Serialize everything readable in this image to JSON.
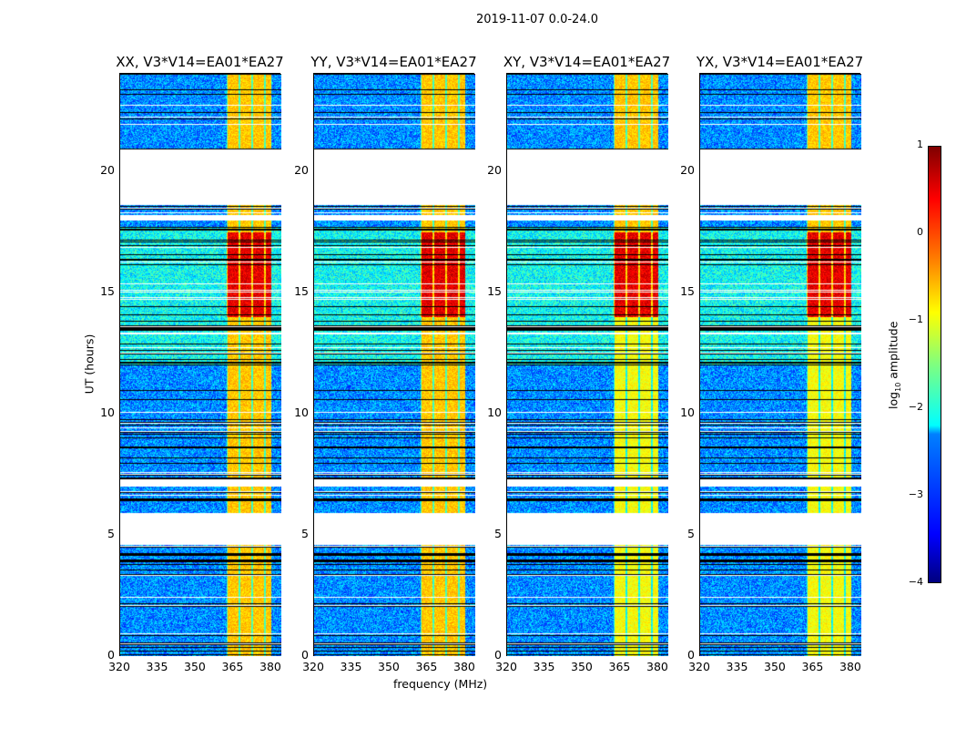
{
  "suptitle": "2019-11-07 0.0-24.0",
  "xlabel": "frequency (MHz)",
  "ylabel": "UT (hours)",
  "colorbar": {
    "label": "log10 amplitude",
    "label_base": "log",
    "label_sub": "10",
    "label_rest": " amplitude",
    "ticks": [
      "1",
      "0",
      "−1",
      "−2",
      "−3",
      "−4"
    ],
    "range": [
      -4,
      1
    ],
    "colormap": "jet"
  },
  "chart_data": {
    "type": "heatmap",
    "title": "2019-11-07 0.0-24.0",
    "xlabel": "frequency (MHz)",
    "ylabel": "UT (hours)",
    "xlim": [
      320,
      384
    ],
    "ylim": [
      0,
      24
    ],
    "xticks": [
      "320",
      "335",
      "350",
      "365",
      "380"
    ],
    "yticks": [
      "0",
      "5",
      "10",
      "15",
      "20"
    ],
    "panels": [
      {
        "title": "XX, V3*V14=EA01*EA27"
      },
      {
        "title": "YY, V3*V14=EA01*EA27"
      },
      {
        "title": "XY, V3*V14=EA01*EA27"
      },
      {
        "title": "YX, V3*V14=EA01*EA27"
      }
    ],
    "features": {
      "rfi_band_mhz": [
        362,
        380
      ],
      "background_log_amp": -2.8,
      "rfi_log_amp": -0.6,
      "strong_rfi_hours": [
        14,
        17.5
      ],
      "strong_rfi_log_amp": 0.5,
      "flagged_hours": [
        [
          4.6,
          5.9
        ],
        [
          7.0,
          7.3
        ],
        [
          18.6,
          20.9
        ],
        [
          18.0,
          18.2
        ]
      ]
    }
  }
}
